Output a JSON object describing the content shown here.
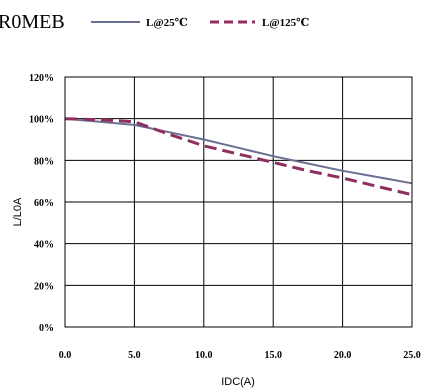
{
  "chart_data": {
    "type": "line",
    "title": "R0MEB",
    "xlabel": "IDC(A)",
    "ylabel": "L/L0A",
    "xlim": [
      0,
      25
    ],
    "ylim": [
      0,
      120
    ],
    "x_ticks": [
      "0.0",
      "5.0",
      "10.0",
      "15.0",
      "20.0",
      "25.0"
    ],
    "y_ticks": [
      "0%",
      "20%",
      "40%",
      "60%",
      "80%",
      "100%",
      "120%"
    ],
    "grid": true,
    "legend_position": "top",
    "series": [
      {
        "name": "L@25℃",
        "color": "#6b6f92",
        "style": "solid",
        "x": [
          0,
          2.5,
          5,
          7.5,
          10,
          12.5,
          15,
          17.5,
          20,
          22.5,
          25
        ],
        "y": [
          100,
          98.5,
          97,
          93.5,
          90,
          86,
          82,
          78.5,
          75,
          72,
          69
        ]
      },
      {
        "name": "L@125℃",
        "color": "#8e2f5f",
        "style": "dashed",
        "x": [
          0,
          2.5,
          5,
          7.5,
          10,
          12.5,
          15,
          17.5,
          20,
          22.5,
          25
        ],
        "y": [
          100,
          99.5,
          98.5,
          92.5,
          87,
          83,
          79,
          75,
          71.5,
          67.5,
          63.5
        ]
      }
    ]
  }
}
